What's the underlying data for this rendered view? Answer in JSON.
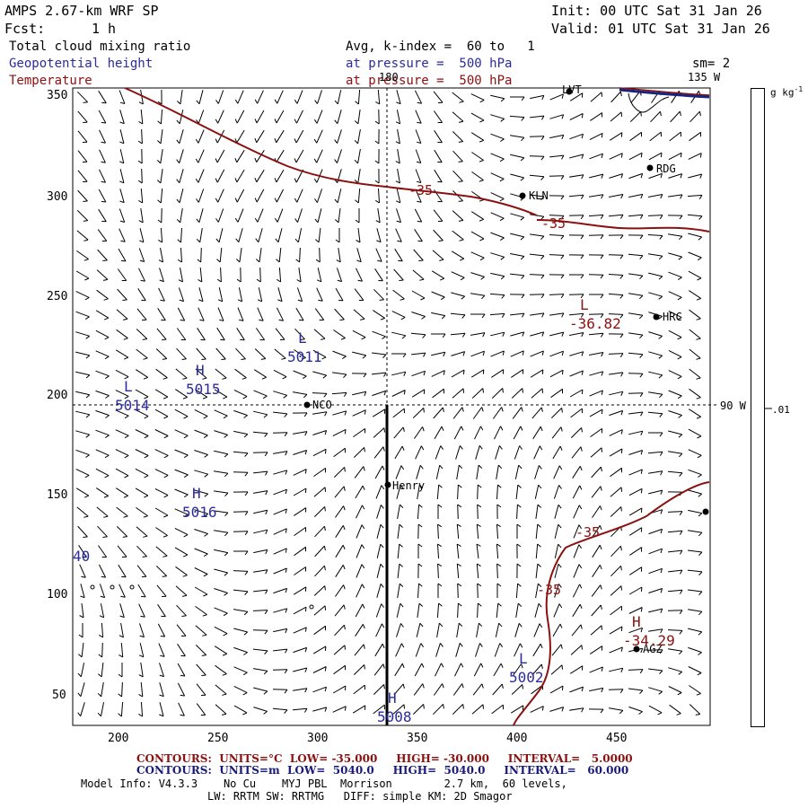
{
  "header": {
    "model": "AMPS 2.67-km WRF SP",
    "init": "Init: 00 UTC Sat 31 Jan 26",
    "fcst_label": "Fcst:",
    "fcst_value": "1 h",
    "valid": "Valid: 01 UTC Sat 31 Jan 26",
    "field1": "Total cloud mixing ratio",
    "field1_avg": "Avg, k-index =  60 to   1",
    "field2": "Geopotential height",
    "field2_level": "at pressure =  500 hPa",
    "field3": "Temperature",
    "field3_level": "at pressure =  500 hPa",
    "smoothing": "sm= 2"
  },
  "map": {
    "meridian_labels": [
      "180",
      "135 W",
      "90 W"
    ],
    "x_ticks": [
      "200",
      "250",
      "300",
      "350",
      "400",
      "450"
    ],
    "y_ticks": [
      "350",
      "300",
      "250",
      "200",
      "150",
      "100",
      "50"
    ],
    "stations": [
      "LVT",
      "RDG",
      "KLN",
      "HRC",
      "NCO",
      "Henry",
      "AGZ"
    ],
    "highs_lows": [
      {
        "letter": "L",
        "value": "5014"
      },
      {
        "letter": "H",
        "value": "5015"
      },
      {
        "letter": "L",
        "value": "5011"
      },
      {
        "letter": "H",
        "value": "5016"
      },
      {
        "letter": "L",
        "value": "5002"
      },
      {
        "letter": "H",
        "value": "5008"
      },
      {
        "letter": "L",
        "value": "-36.82"
      },
      {
        "letter": "H",
        "value": "-34.29"
      }
    ],
    "partial_label": "40",
    "contour_labels": [
      "-35",
      "-35",
      "-35",
      "-35"
    ]
  },
  "colorbar": {
    "units": "g kg",
    "units_exp": "-1",
    "value": ".01"
  },
  "footer": {
    "temp_contours": "CONTOURS:  UNITS=°C  LOW= -35.000     HIGH= -30.000     INTERVAL=   5.0000",
    "height_contours": "CONTOURS:  UNITS=m  LOW=  5040.0     HIGH=  5040.0     INTERVAL=   60.000",
    "model_info": "Model Info: V4.3.3    No Cu    MYJ PBL  Morrison        2.7 km,  60 levels,",
    "physics": "LW: RRTM SW: RRTMG   DIFF: simple KM: 2D Smagor"
  },
  "colors": {
    "temp": "#8b1010",
    "height": "#2b2b9e",
    "coast": "#1a237e"
  }
}
